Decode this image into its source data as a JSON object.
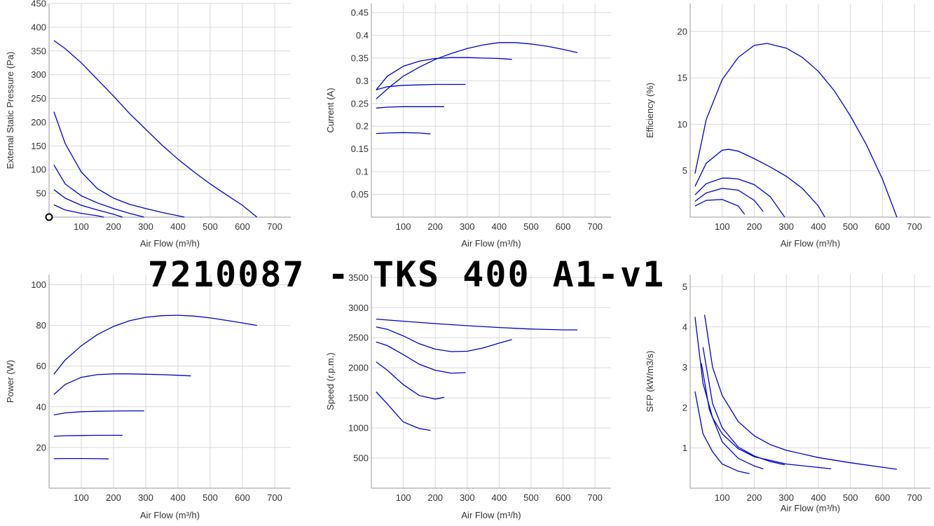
{
  "title": "7210087 - TKS 400 A1-v1",
  "colors": {
    "series": "#0000cc",
    "grid": "#d9d9d9",
    "axis": "#9a9a9a"
  },
  "chart_data": [
    {
      "type": "line",
      "xlabel": "Air Flow (m³/h)",
      "ylabel": "External Static Pressure (Pa)",
      "xlim": [
        0,
        750
      ],
      "ylim": [
        0,
        450
      ],
      "xticks": [
        100,
        200,
        300,
        400,
        500,
        600,
        700
      ],
      "yticks": [
        50,
        100,
        150,
        200,
        250,
        300,
        350,
        400,
        450
      ],
      "grid": true,
      "marker": {
        "x": 0,
        "y": 0,
        "shape": "open-circle"
      },
      "series": [
        {
          "x": [
            15,
            50,
            100,
            150,
            200,
            250,
            300,
            350,
            400,
            450,
            500,
            550,
            600,
            645
          ],
          "y": [
            372,
            355,
            325,
            290,
            255,
            218,
            185,
            152,
            122,
            95,
            70,
            47,
            25,
            0
          ]
        },
        {
          "x": [
            15,
            50,
            100,
            150,
            200,
            250,
            300,
            350,
            400,
            420
          ],
          "y": [
            222,
            155,
            95,
            60,
            40,
            27,
            18,
            10,
            3,
            0
          ]
        },
        {
          "x": [
            15,
            50,
            100,
            150,
            200,
            250,
            295
          ],
          "y": [
            110,
            70,
            45,
            30,
            18,
            8,
            0
          ]
        },
        {
          "x": [
            15,
            50,
            100,
            150,
            200,
            228
          ],
          "y": [
            58,
            40,
            25,
            15,
            6,
            0
          ]
        },
        {
          "x": [
            15,
            50,
            100,
            150,
            170
          ],
          "y": [
            26,
            15,
            8,
            3,
            0
          ]
        }
      ]
    },
    {
      "type": "line",
      "xlabel": "Air Flow (m³/h)",
      "ylabel": "Current (A)",
      "xlim": [
        0,
        750
      ],
      "ylim": [
        0,
        0.47
      ],
      "xticks": [
        100,
        200,
        300,
        400,
        500,
        600,
        700
      ],
      "yticks": [
        0.05,
        0.1,
        0.15,
        0.2,
        0.25,
        0.3,
        0.35,
        0.4,
        0.45
      ],
      "ytick_labels": [
        "0.05",
        "0.1",
        "0.15",
        "0.2",
        "0.25",
        "0.3",
        "0.35",
        "0.4",
        "0.45"
      ],
      "grid": true,
      "series": [
        {
          "x": [
            15,
            60,
            100,
            150,
            200,
            250,
            300,
            350,
            400,
            450,
            500,
            550,
            600,
            645
          ],
          "y": [
            0.26,
            0.288,
            0.31,
            0.33,
            0.347,
            0.36,
            0.371,
            0.379,
            0.384,
            0.384,
            0.381,
            0.376,
            0.369,
            0.362
          ]
        },
        {
          "x": [
            15,
            50,
            100,
            150,
            200,
            250,
            300,
            350,
            400,
            440
          ],
          "y": [
            0.28,
            0.31,
            0.332,
            0.343,
            0.349,
            0.351,
            0.351,
            0.35,
            0.349,
            0.347
          ]
        },
        {
          "x": [
            15,
            50,
            100,
            150,
            200,
            250,
            295
          ],
          "y": [
            0.28,
            0.287,
            0.29,
            0.291,
            0.292,
            0.292,
            0.292
          ]
        },
        {
          "x": [
            15,
            50,
            100,
            150,
            200,
            228
          ],
          "y": [
            0.24,
            0.242,
            0.243,
            0.243,
            0.243,
            0.243
          ]
        },
        {
          "x": [
            15,
            50,
            100,
            150,
            185
          ],
          "y": [
            0.184,
            0.185,
            0.186,
            0.185,
            0.183
          ]
        }
      ]
    },
    {
      "type": "line",
      "xlabel": "Air Flow (m³/h)",
      "ylabel": "Efficiency (%)",
      "xlim": [
        0,
        750
      ],
      "ylim": [
        0,
        23
      ],
      "xticks": [
        100,
        200,
        300,
        400,
        500,
        600,
        700
      ],
      "yticks": [
        5,
        10,
        15,
        20
      ],
      "grid": true,
      "series": [
        {
          "x": [
            15,
            50,
            100,
            150,
            200,
            240,
            300,
            350,
            400,
            450,
            500,
            550,
            600,
            645
          ],
          "y": [
            4.7,
            10.5,
            14.8,
            17.2,
            18.5,
            18.7,
            18.2,
            17.2,
            15.7,
            13.6,
            10.9,
            7.8,
            4.1,
            0
          ]
        },
        {
          "x": [
            15,
            50,
            100,
            120,
            150,
            200,
            250,
            300,
            350,
            400,
            420
          ],
          "y": [
            3.3,
            5.8,
            7.2,
            7.3,
            7.1,
            6.3,
            5.4,
            4.4,
            3.1,
            1.2,
            0
          ]
        },
        {
          "x": [
            15,
            50,
            100,
            120,
            150,
            200,
            250,
            295
          ],
          "y": [
            2.4,
            3.6,
            4.2,
            4.2,
            4.1,
            3.5,
            2.2,
            0
          ]
        },
        {
          "x": [
            15,
            50,
            100,
            150,
            200,
            228
          ],
          "y": [
            1.7,
            2.6,
            3.1,
            2.9,
            1.8,
            0.6
          ]
        },
        {
          "x": [
            15,
            50,
            100,
            150,
            170
          ],
          "y": [
            1.2,
            1.8,
            1.9,
            1.2,
            0.3
          ]
        }
      ]
    },
    {
      "type": "line",
      "xlabel": "Air Flow (m³/h)",
      "ylabel": "Power (W)",
      "xlim": [
        0,
        750
      ],
      "ylim": [
        0,
        105
      ],
      "xticks": [
        100,
        200,
        300,
        400,
        500,
        600,
        700
      ],
      "yticks": [
        20,
        40,
        60,
        80,
        100
      ],
      "grid": true,
      "series": [
        {
          "x": [
            15,
            50,
            100,
            150,
            200,
            250,
            300,
            350,
            400,
            450,
            500,
            550,
            600,
            645
          ],
          "y": [
            56,
            63,
            70,
            75.5,
            79.5,
            82.3,
            84,
            84.8,
            85,
            84.6,
            83.7,
            82.5,
            81.2,
            80
          ]
        },
        {
          "x": [
            15,
            50,
            100,
            150,
            200,
            250,
            300,
            350,
            400,
            440
          ],
          "y": [
            46,
            51,
            54.5,
            55.8,
            56.2,
            56.2,
            56,
            55.8,
            55.5,
            55.2
          ]
        },
        {
          "x": [
            15,
            50,
            100,
            150,
            200,
            250,
            295
          ],
          "y": [
            36,
            37,
            37.6,
            37.8,
            37.9,
            38,
            38
          ]
        },
        {
          "x": [
            15,
            50,
            100,
            150,
            200,
            228
          ],
          "y": [
            25.5,
            25.8,
            25.9,
            26,
            26,
            26
          ]
        },
        {
          "x": [
            15,
            50,
            100,
            150,
            185
          ],
          "y": [
            14.5,
            14.6,
            14.6,
            14.5,
            14.4
          ]
        }
      ]
    },
    {
      "type": "line",
      "xlabel": "Air Flow (m³/h)",
      "ylabel": "Speed (r.p.m.)",
      "xlim": [
        0,
        750
      ],
      "ylim": [
        0,
        3550
      ],
      "xticks": [
        100,
        200,
        300,
        400,
        500,
        600,
        700
      ],
      "yticks": [
        500,
        1000,
        1500,
        2000,
        2500,
        3000,
        3500
      ],
      "grid": true,
      "series": [
        {
          "x": [
            15,
            100,
            200,
            300,
            400,
            500,
            600,
            645
          ],
          "y": [
            2810,
            2775,
            2735,
            2700,
            2670,
            2645,
            2630,
            2630
          ]
        },
        {
          "x": [
            15,
            50,
            100,
            150,
            200,
            250,
            300,
            350,
            400,
            440
          ],
          "y": [
            2680,
            2640,
            2530,
            2400,
            2310,
            2270,
            2275,
            2330,
            2410,
            2470
          ]
        },
        {
          "x": [
            15,
            50,
            100,
            150,
            200,
            250,
            295
          ],
          "y": [
            2430,
            2370,
            2220,
            2060,
            1960,
            1910,
            1920
          ]
        },
        {
          "x": [
            15,
            50,
            100,
            150,
            200,
            228
          ],
          "y": [
            2100,
            1960,
            1720,
            1540,
            1480,
            1510
          ]
        },
        {
          "x": [
            15,
            50,
            100,
            150,
            185
          ],
          "y": [
            1600,
            1400,
            1100,
            990,
            960
          ]
        }
      ]
    },
    {
      "type": "line",
      "xlabel": "Air Flow (m³/h)",
      "ylabel": "SFP (kW/m3/s)",
      "xlim": [
        0,
        750
      ],
      "ylim": [
        0,
        5.3
      ],
      "xticks": [
        100,
        200,
        300,
        400,
        500,
        600,
        700
      ],
      "yticks": [
        1,
        2,
        3,
        4,
        5
      ],
      "grid": true,
      "series": [
        {
          "x": [
            45,
            70,
            100,
            150,
            200,
            250,
            300,
            400,
            500,
            600,
            645
          ],
          "y": [
            4.3,
            3.0,
            2.3,
            1.65,
            1.3,
            1.08,
            0.94,
            0.76,
            0.63,
            0.52,
            0.47
          ]
        },
        {
          "x": [
            15,
            40,
            70,
            100,
            150,
            200,
            300,
            440
          ],
          "y": [
            4.25,
            2.6,
            1.75,
            1.35,
            0.98,
            0.78,
            0.6,
            0.48
          ]
        },
        {
          "x": [
            40,
            70,
            100,
            150,
            200,
            250,
            295
          ],
          "y": [
            3.5,
            2.1,
            1.5,
            1.02,
            0.8,
            0.66,
            0.58
          ]
        },
        {
          "x": [
            35,
            60,
            100,
            150,
            200,
            228
          ],
          "y": [
            3.1,
            1.95,
            1.15,
            0.74,
            0.55,
            0.48
          ]
        },
        {
          "x": [
            15,
            40,
            70,
            100,
            150,
            185
          ],
          "y": [
            2.4,
            1.35,
            0.9,
            0.6,
            0.42,
            0.36
          ]
        }
      ]
    }
  ]
}
